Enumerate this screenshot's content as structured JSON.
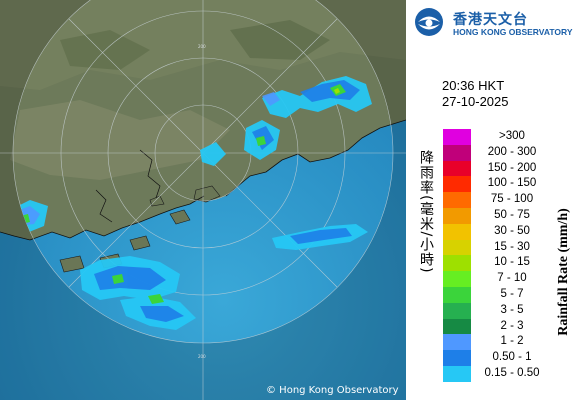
{
  "map": {
    "copyright": "© Hong Kong Observatory",
    "range_label": "200"
  },
  "header": {
    "logo_cn": "香港天文台",
    "logo_en": "HONG KONG OBSERVATORY"
  },
  "timestamp": {
    "time": "20:36 HKT",
    "date": "27-10-2025"
  },
  "legend": {
    "unit_cn": "降雨率(毫米/小時)",
    "unit_en": "Rainfall Rate (mm/h)",
    "items": [
      {
        "label": ">300",
        "color": "#e000e0"
      },
      {
        "label": "200 - 300",
        "color": "#c0007a"
      },
      {
        "label": "150 - 200",
        "color": "#e8002a"
      },
      {
        "label": "100 - 150",
        "color": "#ff2a00"
      },
      {
        "label": "75 - 100",
        "color": "#ff6a00"
      },
      {
        "label": "50 - 75",
        "color": "#f29a00"
      },
      {
        "label": "30 - 50",
        "color": "#f2c200"
      },
      {
        "label": "15 - 30",
        "color": "#d7d200"
      },
      {
        "label": "10 - 15",
        "color": "#9ee000"
      },
      {
        "label": "7 - 10",
        "color": "#66ee22"
      },
      {
        "label": "5 - 7",
        "color": "#3bd43b"
      },
      {
        "label": "3 - 5",
        "color": "#26b050"
      },
      {
        "label": "2 - 3",
        "color": "#168a44"
      },
      {
        "label": "1 - 2",
        "color": "#4f98ff"
      },
      {
        "label": "0.50 - 1",
        "color": "#1e7fe8"
      },
      {
        "label": "0.15 - 0.50",
        "color": "#26c8f5"
      }
    ]
  }
}
